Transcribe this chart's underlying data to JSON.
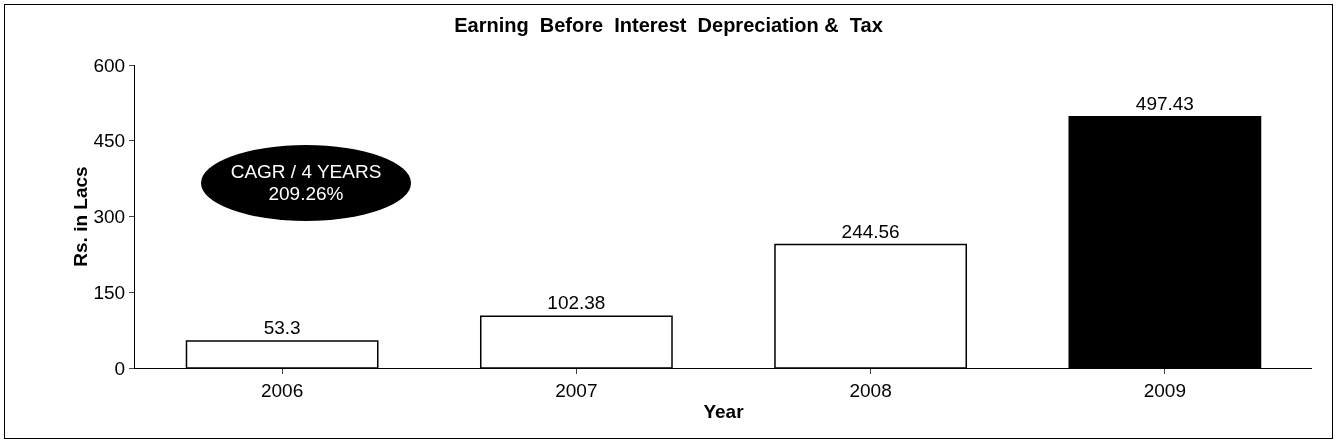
{
  "chart_data": {
    "type": "bar",
    "title": "Earning  Before  Interest  Depreciation &  Tax",
    "xlabel": "Year",
    "ylabel": "Rs. in Lacs",
    "categories": [
      "2006",
      "2007",
      "2008",
      "2009"
    ],
    "values": [
      53.3,
      102.38,
      244.56,
      497.43
    ],
    "colors": [
      "#ffffff",
      "#ffffff",
      "#ffffff",
      "#000000"
    ],
    "ylim": [
      0,
      600
    ],
    "yticks": [
      0,
      150,
      300,
      450,
      600
    ],
    "grid": false,
    "data_labels": true,
    "annotations": [
      "CAGR / 4 YEARS\n209.26%"
    ]
  }
}
